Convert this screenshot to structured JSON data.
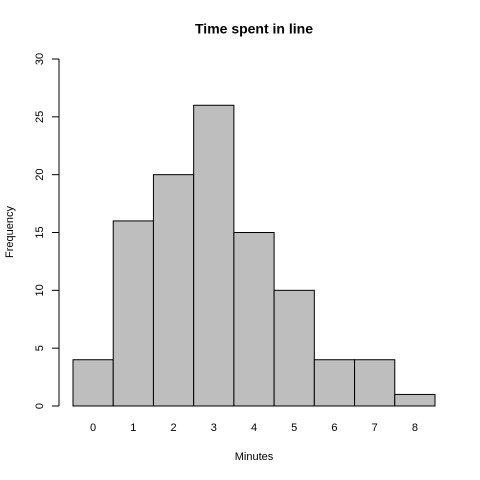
{
  "chart_data": {
    "type": "bar",
    "title": "Time spent in line",
    "x_label": "Minutes",
    "y_label": "Frequency",
    "categories": [
      "0",
      "1",
      "2",
      "3",
      "4",
      "5",
      "6",
      "7",
      "8"
    ],
    "values": [
      4,
      16,
      20,
      26,
      15,
      10,
      4,
      4,
      1
    ],
    "color": "#bebebe",
    "ylim": [
      0,
      30
    ],
    "yticks": [
      0,
      5,
      10,
      15,
      20,
      25,
      30
    ]
  }
}
